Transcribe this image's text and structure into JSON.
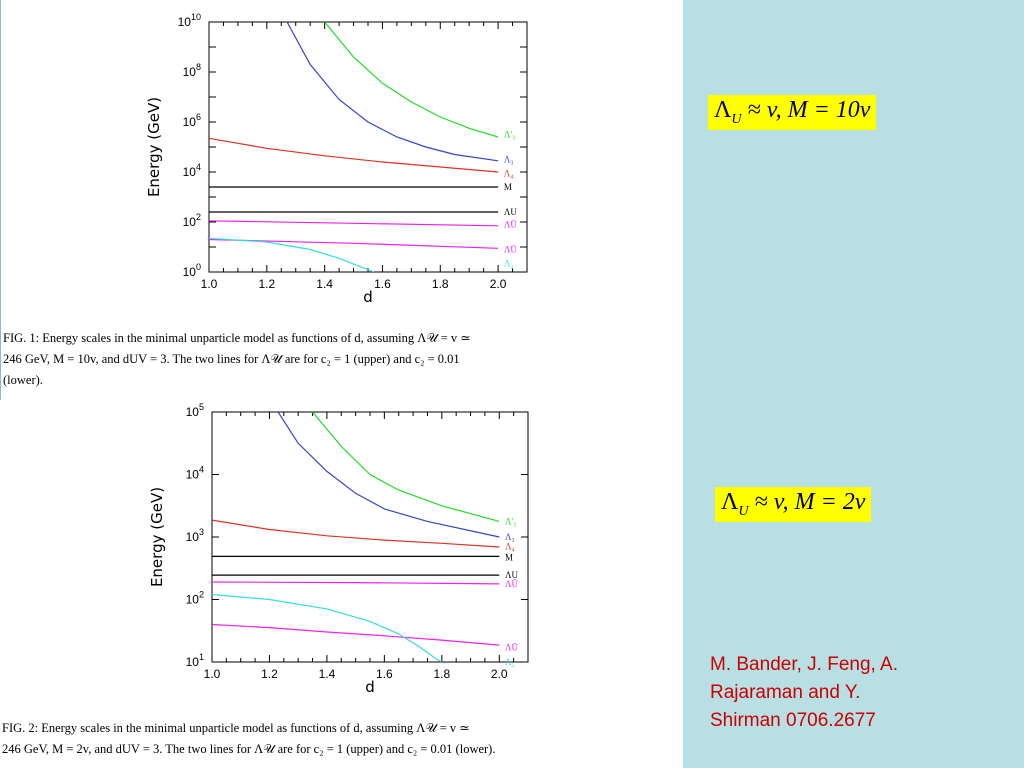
{
  "chart_data": [
    {
      "type": "line",
      "figure": "top",
      "xlabel": "d",
      "ylabel": "Energy (GeV)",
      "xlim": [
        1.0,
        2.1
      ],
      "xticks": [
        "1.0",
        "1.2",
        "1.4",
        "1.6",
        "1.8",
        "2.0"
      ],
      "ylog": true,
      "ylim_exp": [
        0,
        10
      ],
      "yticks": [
        {
          "base": "10",
          "exp": "0"
        },
        {
          "base": "10",
          "exp": "2"
        },
        {
          "base": "10",
          "exp": "4"
        },
        {
          "base": "10",
          "exp": "6"
        },
        {
          "base": "10",
          "exp": "8"
        },
        {
          "base": "10",
          "exp": "10"
        }
      ],
      "series": [
        {
          "name": "Λ'₃",
          "color": "#22dd22",
          "label_y": 5.5,
          "points": [
            [
              1.4,
              10
            ],
            [
              1.5,
              8.6
            ],
            [
              1.6,
              7.55
            ],
            [
              1.7,
              6.8
            ],
            [
              1.8,
              6.2
            ],
            [
              1.9,
              5.75
            ],
            [
              2.0,
              5.4
            ]
          ]
        },
        {
          "name": "Λ₃",
          "color": "#3344cc",
          "label_y": 4.5,
          "points": [
            [
              1.27,
              10
            ],
            [
              1.35,
              8.3
            ],
            [
              1.45,
              6.9
            ],
            [
              1.55,
              6.0
            ],
            [
              1.65,
              5.4
            ],
            [
              1.75,
              5.0
            ],
            [
              1.85,
              4.7
            ],
            [
              2.0,
              4.45
            ]
          ]
        },
        {
          "name": "Λ₄",
          "color": "#dd3322",
          "label_y": 3.95,
          "points": [
            [
              1.0,
              5.35
            ],
            [
              1.2,
              4.95
            ],
            [
              1.4,
              4.65
            ],
            [
              1.6,
              4.4
            ],
            [
              1.8,
              4.2
            ],
            [
              2.0,
              4.0
            ]
          ]
        },
        {
          "name": "M",
          "color": "#000000",
          "label_y": 3.4,
          "points": [
            [
              1.0,
              3.4
            ],
            [
              2.0,
              3.4
            ]
          ]
        },
        {
          "name": "Λ_U",
          "color": "#000000",
          "label_y": 2.4,
          "points": [
            [
              1.0,
              2.4
            ],
            [
              2.0,
              2.4
            ]
          ]
        },
        {
          "name": "Λ_Ū (upper)",
          "color": "#ee22ee",
          "label_y": 1.9,
          "points": [
            [
              1.0,
              2.05
            ],
            [
              1.5,
              1.95
            ],
            [
              2.0,
              1.85
            ]
          ]
        },
        {
          "name": "Λ_Ū (lower)",
          "color": "#ee22ee",
          "label_y": 0.9,
          "points": [
            [
              1.0,
              1.3
            ],
            [
              1.5,
              1.15
            ],
            [
              2.0,
              0.95
            ]
          ]
        },
        {
          "name": "Λ₂",
          "color": "#33dddd",
          "label_y": 0.35,
          "points": [
            [
              1.0,
              1.35
            ],
            [
              1.2,
              1.2
            ],
            [
              1.35,
              0.9
            ],
            [
              1.45,
              0.55
            ],
            [
              1.57,
              0.0
            ]
          ]
        }
      ],
      "legend_labels": [
        "Λ'₃",
        "Λ₃",
        "Λ₄",
        "M",
        "ΛU",
        "ΛŪ",
        "ΛŪ",
        "Λ₂"
      ]
    },
    {
      "type": "line",
      "figure": "bottom",
      "xlabel": "d",
      "ylabel": "Energy (GeV)",
      "xlim": [
        1.0,
        2.1
      ],
      "xticks": [
        "1.0",
        "1.2",
        "1.4",
        "1.6",
        "1.8",
        "2.0"
      ],
      "ylog": true,
      "ylim_exp": [
        1,
        5
      ],
      "yticks": [
        {
          "base": "10",
          "exp": "1"
        },
        {
          "base": "10",
          "exp": "2"
        },
        {
          "base": "10",
          "exp": "3"
        },
        {
          "base": "10",
          "exp": "4"
        },
        {
          "base": "10",
          "exp": "5"
        }
      ],
      "series": [
        {
          "name": "Λ'₃",
          "color": "#22dd22",
          "label_y": 3.25,
          "points": [
            [
              1.35,
              5
            ],
            [
              1.45,
              4.45
            ],
            [
              1.55,
              4.0
            ],
            [
              1.65,
              3.75
            ],
            [
              1.8,
              3.5
            ],
            [
              2.0,
              3.25
            ]
          ]
        },
        {
          "name": "Λ₃",
          "color": "#3344cc",
          "label_y": 3.0,
          "points": [
            [
              1.23,
              5
            ],
            [
              1.3,
              4.5
            ],
            [
              1.4,
              4.05
            ],
            [
              1.5,
              3.7
            ],
            [
              1.6,
              3.45
            ],
            [
              1.75,
              3.25
            ],
            [
              2.0,
              3.0
            ]
          ]
        },
        {
          "name": "Λ₄",
          "color": "#dd3322",
          "label_y": 2.85,
          "points": [
            [
              1.0,
              3.27
            ],
            [
              1.2,
              3.12
            ],
            [
              1.4,
              3.02
            ],
            [
              1.6,
              2.95
            ],
            [
              1.8,
              2.9
            ],
            [
              2.0,
              2.84
            ]
          ]
        },
        {
          "name": "M",
          "color": "#000000",
          "label_y": 2.67,
          "points": [
            [
              1.0,
              2.69
            ],
            [
              2.0,
              2.69
            ]
          ]
        },
        {
          "name": "Λ_U",
          "color": "#000000",
          "label_y": 2.39,
          "points": [
            [
              1.0,
              2.39
            ],
            [
              2.0,
              2.39
            ]
          ]
        },
        {
          "name": "Λ_Ū (upper)",
          "color": "#ee22ee",
          "label_y": 2.25,
          "points": [
            [
              1.0,
              2.28
            ],
            [
              1.5,
              2.27
            ],
            [
              2.0,
              2.25
            ]
          ]
        },
        {
          "name": "Λ_Ū (lower)",
          "color": "#ee22ee",
          "label_y": 1.23,
          "points": [
            [
              1.0,
              1.6
            ],
            [
              1.2,
              1.55
            ],
            [
              1.4,
              1.48
            ],
            [
              1.6,
              1.42
            ],
            [
              1.8,
              1.35
            ],
            [
              2.0,
              1.27
            ]
          ]
        },
        {
          "name": "Λ₂",
          "color": "#33dddd",
          "label_y": 1.0,
          "points": [
            [
              1.0,
              2.08
            ],
            [
              1.2,
              2.0
            ],
            [
              1.4,
              1.85
            ],
            [
              1.55,
              1.65
            ],
            [
              1.65,
              1.45
            ],
            [
              1.72,
              1.25
            ],
            [
              1.78,
              1.05
            ],
            [
              1.8,
              1.0
            ]
          ]
        }
      ],
      "legend_labels": [
        "Λ'₃",
        "Λ₃",
        "Λ₄",
        "M",
        "ΛU",
        "ΛŪ",
        "ΛŪ",
        "Λ₂"
      ]
    }
  ],
  "captions": {
    "top": {
      "l1": "FIG. 1: Energy scales in the minimal unparticle model as functions of d, assuming Λ𝒰 = v ≃",
      "l2": "246 GeV, M = 10v, and dUV = 3.  The two lines for Λ𝒰 are for c₂ = 1 (upper) and c₂ = 0.01",
      "l3": "(lower)."
    },
    "bottom": {
      "l1": "FIG. 2: Energy scales in the minimal unparticle model as functions of d, assuming Λ𝒰 = v ≃",
      "l2": "246 GeV, M = 2v, and dUV = 3. The two lines for Λ𝒰 are for c₂ = 1 (upper) and c₂ = 0.01 (lower)."
    }
  },
  "formulas": {
    "top": "Λ_U ≈ v, M = 10v",
    "top_parts": {
      "lambda": "Λ",
      "sub": "U",
      "rest": " ≈ v, M = 10v"
    },
    "bottom_parts": {
      "lambda": "Λ",
      "sub": "U",
      "rest": " ≈ v, M = 2v"
    }
  },
  "citation": {
    "line1": "M. Bander, J. Feng, A.",
    "line2": "Rajaraman and Y.",
    "line3": "Shirman   0706.2677"
  },
  "colors": {
    "background": "#b8dfe3",
    "formula_bg": "#ffff00",
    "citation": "#cc0000"
  }
}
